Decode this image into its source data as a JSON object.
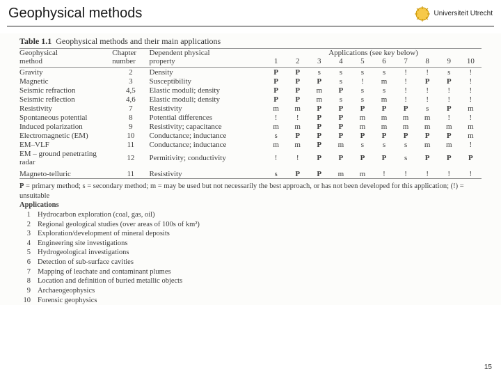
{
  "header": {
    "title": "Geophysical methods",
    "org": "Universiteit Utrecht",
    "logo_colors": {
      "outer": "#f7c948",
      "inner": "#c99400"
    }
  },
  "page_number": "15",
  "table": {
    "title_prefix": "Table 1.1",
    "title_rest": "Geophysical methods and their main applications",
    "headers": {
      "col1_top": "Geophysical",
      "col1_bot": "method",
      "col2_top": "Chapter",
      "col2_bot": "number",
      "col3_top": "Dependent physical",
      "col3_bot": "property",
      "apps_label": "Applications (see key below)",
      "app_nums": [
        "1",
        "2",
        "3",
        "4",
        "5",
        "6",
        "7",
        "8",
        "9",
        "10"
      ]
    },
    "rows": [
      {
        "method": "Gravity",
        "chapter": "2",
        "property": "Density",
        "apps": [
          "P",
          "P",
          "s",
          "s",
          "s",
          "s",
          "!",
          "!",
          "s",
          "!"
        ]
      },
      {
        "method": "Magnetic",
        "chapter": "3",
        "property": "Susceptibility",
        "apps": [
          "P",
          "P",
          "P",
          "s",
          "!",
          "m",
          "!",
          "P",
          "P",
          "!"
        ]
      },
      {
        "method": "Seismic refraction",
        "chapter": "4,5",
        "property": "Elastic moduli; density",
        "apps": [
          "P",
          "P",
          "m",
          "P",
          "s",
          "s",
          "!",
          "!",
          "!",
          "!"
        ]
      },
      {
        "method": "Seismic reflection",
        "chapter": "4,6",
        "property": "Elastic moduli; density",
        "apps": [
          "P",
          "P",
          "m",
          "s",
          "s",
          "m",
          "!",
          "!",
          "!",
          "!"
        ]
      },
      {
        "method": "Resistivity",
        "chapter": "7",
        "property": "Resistivity",
        "apps": [
          "m",
          "m",
          "P",
          "P",
          "P",
          "P",
          "P",
          "s",
          "P",
          "m"
        ]
      },
      {
        "method": "Spontaneous potential",
        "chapter": "8",
        "property": "Potential differences",
        "apps": [
          "!",
          "!",
          "P",
          "P",
          "m",
          "m",
          "m",
          "m",
          "!",
          "!"
        ]
      },
      {
        "method": "Induced polarization",
        "chapter": "9",
        "property": "Resistivity; capacitance",
        "apps": [
          "m",
          "m",
          "P",
          "P",
          "m",
          "m",
          "m",
          "m",
          "m",
          "m"
        ]
      },
      {
        "method": "Electromagnetic (EM)",
        "chapter": "10",
        "property": "Conductance; inductance",
        "apps": [
          "s",
          "P",
          "P",
          "P",
          "P",
          "P",
          "P",
          "P",
          "P",
          "m"
        ]
      },
      {
        "method": "EM–VLF",
        "chapter": "11",
        "property": "Conductance; inductance",
        "apps": [
          "m",
          "m",
          "P",
          "m",
          "s",
          "s",
          "s",
          "m",
          "m",
          "!"
        ]
      },
      {
        "method": "EM – ground penetrating radar",
        "chapter": "12",
        "property": "Permitivity; conductivity",
        "apps": [
          "!",
          "!",
          "P",
          "P",
          "P",
          "P",
          "s",
          "P",
          "P",
          "P"
        ]
      },
      {
        "method": "Magneto-telluric",
        "chapter": "11",
        "property": "Resistivity",
        "apps": [
          "s",
          "P",
          "P",
          "m",
          "m",
          "!",
          "!",
          "!",
          "!",
          "!"
        ]
      }
    ]
  },
  "legend": {
    "key_line": "P = primary method; s = secondary method; m = may be used but not necessarily the best approach, or has not been developed for this application; (!) = unsuitable",
    "apps_heading": "Applications",
    "items": [
      "Hydrocarbon exploration (coal, gas, oil)",
      "Regional geological studies (over areas of 100s of km²)",
      "Exploration/development of mineral deposits",
      "Engineering site investigations",
      "Hydrogeological investigations",
      "Detection of sub-surface cavities",
      "Mapping of leachate and contaminant plumes",
      "Location and definition of buried metallic objects",
      "Archaeogeophysics",
      "Forensic geophysics"
    ]
  }
}
